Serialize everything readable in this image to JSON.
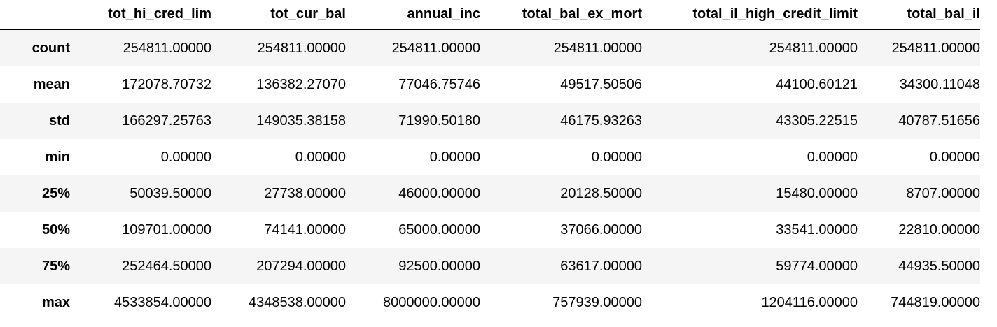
{
  "table": {
    "index_header": "",
    "columns": [
      "tot_hi_cred_lim",
      "tot_cur_bal",
      "annual_inc",
      "total_bal_ex_mort",
      "total_il_high_credit_limit",
      "total_bal_il"
    ],
    "rows": [
      {
        "label": "count",
        "values": [
          "254811.00000",
          "254811.00000",
          "254811.00000",
          "254811.00000",
          "254811.00000",
          "254811.00000"
        ]
      },
      {
        "label": "mean",
        "values": [
          "172078.70732",
          "136382.27070",
          "77046.75746",
          "49517.50506",
          "44100.60121",
          "34300.11048"
        ]
      },
      {
        "label": "std",
        "values": [
          "166297.25763",
          "149035.38158",
          "71990.50180",
          "46175.93263",
          "43305.22515",
          "40787.51656"
        ]
      },
      {
        "label": "min",
        "values": [
          "0.00000",
          "0.00000",
          "0.00000",
          "0.00000",
          "0.00000",
          "0.00000"
        ]
      },
      {
        "label": "25%",
        "values": [
          "50039.50000",
          "27738.00000",
          "46000.00000",
          "20128.50000",
          "15480.00000",
          "8707.00000"
        ]
      },
      {
        "label": "50%",
        "values": [
          "109701.00000",
          "74141.00000",
          "65000.00000",
          "37066.00000",
          "33541.00000",
          "22810.00000"
        ]
      },
      {
        "label": "75%",
        "values": [
          "252464.50000",
          "207294.00000",
          "92500.00000",
          "63617.00000",
          "59774.00000",
          "44935.50000"
        ]
      },
      {
        "label": "max",
        "values": [
          "4533854.00000",
          "4348538.00000",
          "8000000.00000",
          "757939.00000",
          "1204116.00000",
          "744819.00000"
        ]
      }
    ]
  },
  "colors": {
    "stripe": "#f5f5f5",
    "header_rule": "#000000",
    "text": "#000000"
  }
}
